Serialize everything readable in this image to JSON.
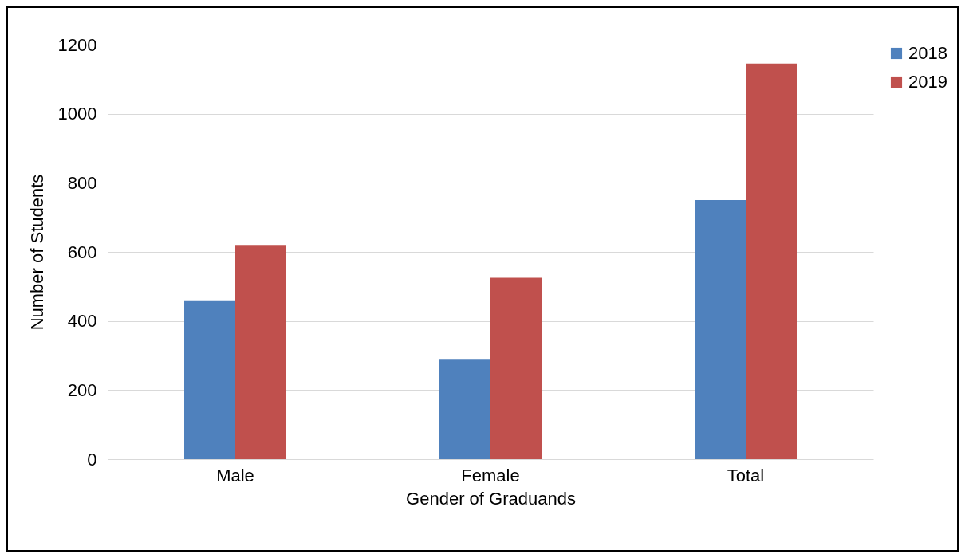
{
  "chart_data": {
    "type": "bar",
    "xlabel": "Gender of Graduands",
    "ylabel": "Number of Students",
    "categories": [
      "Male",
      "Female",
      "Total"
    ],
    "series": [
      {
        "name": "2018",
        "color": "#4f81bd",
        "values": [
          460,
          290,
          750
        ]
      },
      {
        "name": "2019",
        "color": "#c0504d",
        "values": [
          620,
          525,
          1145
        ]
      }
    ],
    "ylim": [
      0,
      1200
    ],
    "yticks": [
      0,
      200,
      400,
      600,
      800,
      1000,
      1200
    ],
    "grid": "y",
    "legend": "right"
  }
}
